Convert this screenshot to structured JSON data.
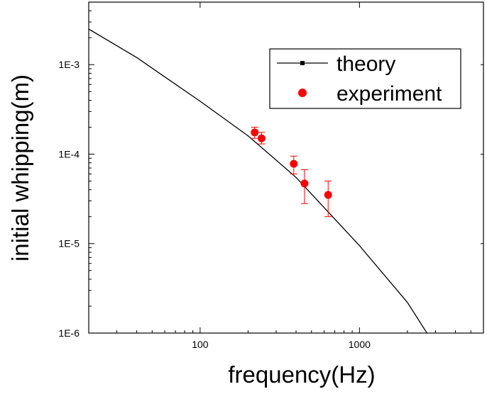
{
  "chart_data": {
    "type": "scatter",
    "title": "",
    "xlabel": "frequency(Hz)",
    "ylabel": "initial whipping(m)",
    "xscale": "log",
    "yscale": "log",
    "xlim": [
      20,
      6000
    ],
    "ylim": [
      1e-06,
      0.005
    ],
    "grid": false,
    "legend_position": "top-right",
    "x_ticks": [
      {
        "value": 100,
        "label": "100"
      },
      {
        "value": 1000,
        "label": "1000"
      }
    ],
    "y_ticks": [
      {
        "value": 1e-06,
        "label": "1E-6"
      },
      {
        "value": 1e-05,
        "label": "1E-5"
      },
      {
        "value": 0.0001,
        "label": "1E-4"
      },
      {
        "value": 0.001,
        "label": "1E-3"
      }
    ],
    "series": [
      {
        "name": "theory",
        "type": "line",
        "color": "#000000",
        "x": [
          20,
          40,
          100,
          200,
          400,
          1000,
          2000,
          2700
        ],
        "y": [
          0.0025,
          0.0012,
          0.00039,
          0.00016,
          5.5e-05,
          9.5e-06,
          2.2e-06,
          9.5e-07
        ]
      },
      {
        "name": "experiment",
        "type": "scatter",
        "color": "#ff0000",
        "x": [
          220,
          243,
          387,
          452,
          636
        ],
        "y": [
          0.000175,
          0.00015,
          7.8e-05,
          4.7e-05,
          3.5e-05
        ],
        "y_err_low": [
          0.00015,
          0.00013,
          6e-05,
          2.8e-05,
          2e-05
        ],
        "y_err_high": [
          0.0002,
          0.000175,
          9.5e-05,
          6.7e-05,
          5e-05
        ]
      }
    ]
  }
}
